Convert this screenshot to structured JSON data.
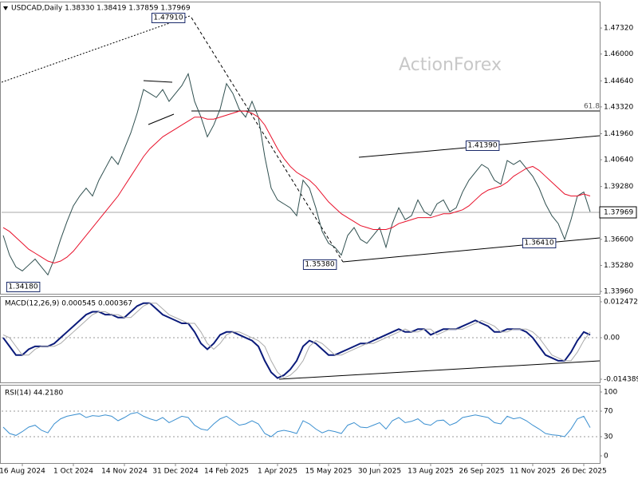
{
  "header": {
    "title": "USDCAD,Daily 1.38330 1.38419 1.37859 1.37969",
    "watermark": "ActionForex",
    "price_tag": "1.37969"
  },
  "chart_data": [
    {
      "type": "line",
      "title": "USDCAD,Daily",
      "categories": [
        null,
        null,
        null,
        "16 Aug 2024",
        null,
        null,
        null,
        null,
        null,
        null,
        null,
        "1 Oct 2024",
        null,
        null,
        null,
        null,
        null,
        null,
        null,
        "14 Nov 2024",
        null,
        null,
        null,
        null,
        null,
        null,
        null,
        "31 Dec 2024",
        null,
        null,
        null,
        null,
        null,
        null,
        null,
        "14 Feb 2025",
        null,
        null,
        null,
        null,
        null,
        null,
        null,
        "1 Apr 2025",
        null,
        null,
        null,
        null,
        null,
        null,
        null,
        "15 May 2025",
        null,
        null,
        null,
        null,
        null,
        null,
        null,
        "30 Jun 2025",
        null,
        null,
        null,
        null,
        null,
        null,
        null,
        "13 Aug 2025",
        null,
        null,
        null,
        null,
        null,
        null,
        null,
        "26 Sep 2025",
        null,
        null,
        null,
        null,
        null,
        null,
        null,
        "11 Nov 2025",
        null,
        null,
        null,
        null,
        null,
        null,
        null,
        "26 Dec 2025",
        null
      ],
      "series": [
        {
          "name": "USDCAD",
          "color": "#2f4f4f",
          "values": [
            1.368,
            1.358,
            1.352,
            1.35,
            1.353,
            1.356,
            1.352,
            1.348,
            1.356,
            1.366,
            1.375,
            1.383,
            1.388,
            1.392,
            1.388,
            1.396,
            1.402,
            1.408,
            1.404,
            1.412,
            1.42,
            1.43,
            1.442,
            1.44,
            1.438,
            1.442,
            1.436,
            1.44,
            1.444,
            1.45,
            1.436,
            1.428,
            1.418,
            1.424,
            1.432,
            1.445,
            1.44,
            1.432,
            1.428,
            1.436,
            1.428,
            1.408,
            1.392,
            1.386,
            1.384,
            1.382,
            1.378,
            1.396,
            1.392,
            1.382,
            1.37,
            1.364,
            1.362,
            1.358,
            1.368,
            1.372,
            1.366,
            1.364,
            1.368,
            1.372,
            1.362,
            1.374,
            1.382,
            1.376,
            1.378,
            1.386,
            1.38,
            1.378,
            1.384,
            1.386,
            1.38,
            1.382,
            1.39,
            1.396,
            1.4,
            1.404,
            1.402,
            1.396,
            1.394,
            1.406,
            1.404,
            1.406,
            1.402,
            1.398,
            1.392,
            1.384,
            1.378,
            1.374,
            1.366,
            1.376,
            1.388,
            1.39,
            1.38
          ]
        },
        {
          "name": "MA",
          "color": "#e8102a",
          "values": [
            1.372,
            1.37,
            1.367,
            1.364,
            1.361,
            1.359,
            1.357,
            1.355,
            1.354,
            1.355,
            1.357,
            1.36,
            1.364,
            1.368,
            1.372,
            1.376,
            1.38,
            1.384,
            1.388,
            1.393,
            1.398,
            1.403,
            1.408,
            1.412,
            1.415,
            1.418,
            1.42,
            1.422,
            1.424,
            1.426,
            1.428,
            1.428,
            1.427,
            1.427,
            1.428,
            1.429,
            1.43,
            1.431,
            1.431,
            1.43,
            1.428,
            1.424,
            1.418,
            1.412,
            1.407,
            1.403,
            1.4,
            1.398,
            1.396,
            1.393,
            1.389,
            1.385,
            1.382,
            1.379,
            1.377,
            1.375,
            1.373,
            1.372,
            1.371,
            1.371,
            1.371,
            1.372,
            1.374,
            1.375,
            1.376,
            1.377,
            1.377,
            1.377,
            1.378,
            1.379,
            1.379,
            1.38,
            1.381,
            1.383,
            1.386,
            1.389,
            1.391,
            1.392,
            1.393,
            1.395,
            1.398,
            1.4,
            1.402,
            1.403,
            1.401,
            1.398,
            1.395,
            1.392,
            1.389,
            1.388,
            1.388,
            1.389,
            1.388
          ]
        }
      ],
      "ylim": [
        1.3384,
        1.4866
      ],
      "yticks": [
        {
          "value": 1.4732,
          "label": "1.47320"
        },
        {
          "value": 1.46,
          "label": "1.46000"
        },
        {
          "value": 1.4464,
          "label": "1.44640"
        },
        {
          "value": 1.4332,
          "label": "1.43320"
        },
        {
          "value": 1.4196,
          "label": "1.41960"
        },
        {
          "value": 1.4064,
          "label": "1.40640"
        },
        {
          "value": 1.3928,
          "label": "1.39280"
        },
        {
          "value": 1.366,
          "label": "1.36600"
        },
        {
          "value": 1.3528,
          "label": "1.35280"
        },
        {
          "value": 1.3396,
          "label": "1.33960"
        }
      ],
      "grid": false,
      "annotations": [
        "1.47910",
        "1.34180",
        "1.35380",
        "1.41390",
        "1.36410",
        "61.8"
      ]
    },
    {
      "type": "line",
      "title": "MACD(12,26,9) 0.000545 0.000367",
      "series": [
        {
          "name": "MACD",
          "color": "#0a1a7a",
          "values": [
            0.0,
            -0.003,
            -0.006,
            -0.006,
            -0.004,
            -0.003,
            -0.003,
            -0.003,
            -0.002,
            0.0,
            0.002,
            0.004,
            0.006,
            0.008,
            0.009,
            0.009,
            0.008,
            0.008,
            0.007,
            0.007,
            0.009,
            0.011,
            0.012,
            0.012,
            0.01,
            0.008,
            0.007,
            0.006,
            0.005,
            0.005,
            0.002,
            -0.002,
            -0.004,
            -0.002,
            0.001,
            0.002,
            0.002,
            0.001,
            0.0,
            -0.001,
            -0.003,
            -0.008,
            -0.012,
            -0.014,
            -0.013,
            -0.011,
            -0.008,
            -0.003,
            -0.001,
            -0.002,
            -0.004,
            -0.006,
            -0.006,
            -0.005,
            -0.004,
            -0.003,
            -0.002,
            -0.002,
            -0.001,
            0.0,
            0.001,
            0.002,
            0.003,
            0.002,
            0.002,
            0.003,
            0.003,
            0.001,
            0.002,
            0.003,
            0.003,
            0.003,
            0.004,
            0.005,
            0.006,
            0.005,
            0.004,
            0.002,
            0.002,
            0.003,
            0.003,
            0.003,
            0.002,
            0.0,
            -0.003,
            -0.006,
            -0.007,
            -0.008,
            -0.008,
            -0.005,
            -0.001,
            0.002,
            0.001
          ]
        },
        {
          "name": "Signal",
          "color": "#aaaaaa",
          "values": [
            0.001,
            0.0,
            -0.003,
            -0.006,
            -0.006,
            -0.004,
            -0.003,
            -0.003,
            -0.003,
            -0.002,
            0.0,
            0.002,
            0.004,
            0.006,
            0.008,
            0.009,
            0.009,
            0.008,
            0.008,
            0.007,
            0.007,
            0.009,
            0.011,
            0.012,
            0.012,
            0.01,
            0.008,
            0.007,
            0.006,
            0.005,
            0.005,
            0.002,
            -0.002,
            -0.004,
            -0.002,
            0.001,
            0.002,
            0.002,
            0.001,
            0.0,
            -0.001,
            -0.003,
            -0.008,
            -0.012,
            -0.014,
            -0.013,
            -0.011,
            -0.008,
            -0.003,
            -0.001,
            -0.002,
            -0.004,
            -0.006,
            -0.006,
            -0.005,
            -0.004,
            -0.003,
            -0.002,
            -0.002,
            -0.001,
            0.0,
            0.001,
            0.002,
            0.003,
            0.002,
            0.002,
            0.003,
            0.003,
            0.001,
            0.002,
            0.003,
            0.003,
            0.003,
            0.004,
            0.005,
            0.006,
            0.005,
            0.004,
            0.002,
            0.002,
            0.003,
            0.003,
            0.003,
            0.002,
            0.0,
            -0.003,
            -0.006,
            -0.007,
            -0.008,
            -0.008,
            -0.005,
            -0.001,
            0.002
          ]
        }
      ],
      "ylim": [
        -0.0155,
        0.01441
      ],
      "yticks": [
        0.012472,
        {
          "value": 0,
          "label": "0.00"
        },
        -0.014389
      ],
      "grid": true
    },
    {
      "type": "line",
      "title": "RSI(14) 44.2180",
      "series": [
        {
          "name": "RSI",
          "color": "#3a8fd0",
          "values": [
            45,
            35,
            32,
            38,
            45,
            48,
            40,
            36,
            50,
            58,
            62,
            64,
            66,
            60,
            63,
            62,
            64,
            62,
            55,
            60,
            66,
            68,
            62,
            58,
            55,
            60,
            52,
            57,
            62,
            60,
            48,
            42,
            40,
            50,
            58,
            62,
            55,
            48,
            50,
            55,
            50,
            35,
            30,
            38,
            40,
            38,
            35,
            55,
            50,
            42,
            36,
            40,
            38,
            35,
            48,
            52,
            45,
            44,
            48,
            52,
            42,
            55,
            60,
            52,
            54,
            58,
            50,
            48,
            55,
            56,
            48,
            52,
            60,
            62,
            64,
            62,
            60,
            52,
            50,
            62,
            58,
            60,
            55,
            48,
            42,
            35,
            33,
            32,
            30,
            42,
            58,
            62,
            44.218
          ]
        }
      ],
      "ylim": [
        -11.25,
        111.25
      ],
      "yticks": [
        100,
        70,
        30,
        0
      ],
      "grid": true
    }
  ]
}
